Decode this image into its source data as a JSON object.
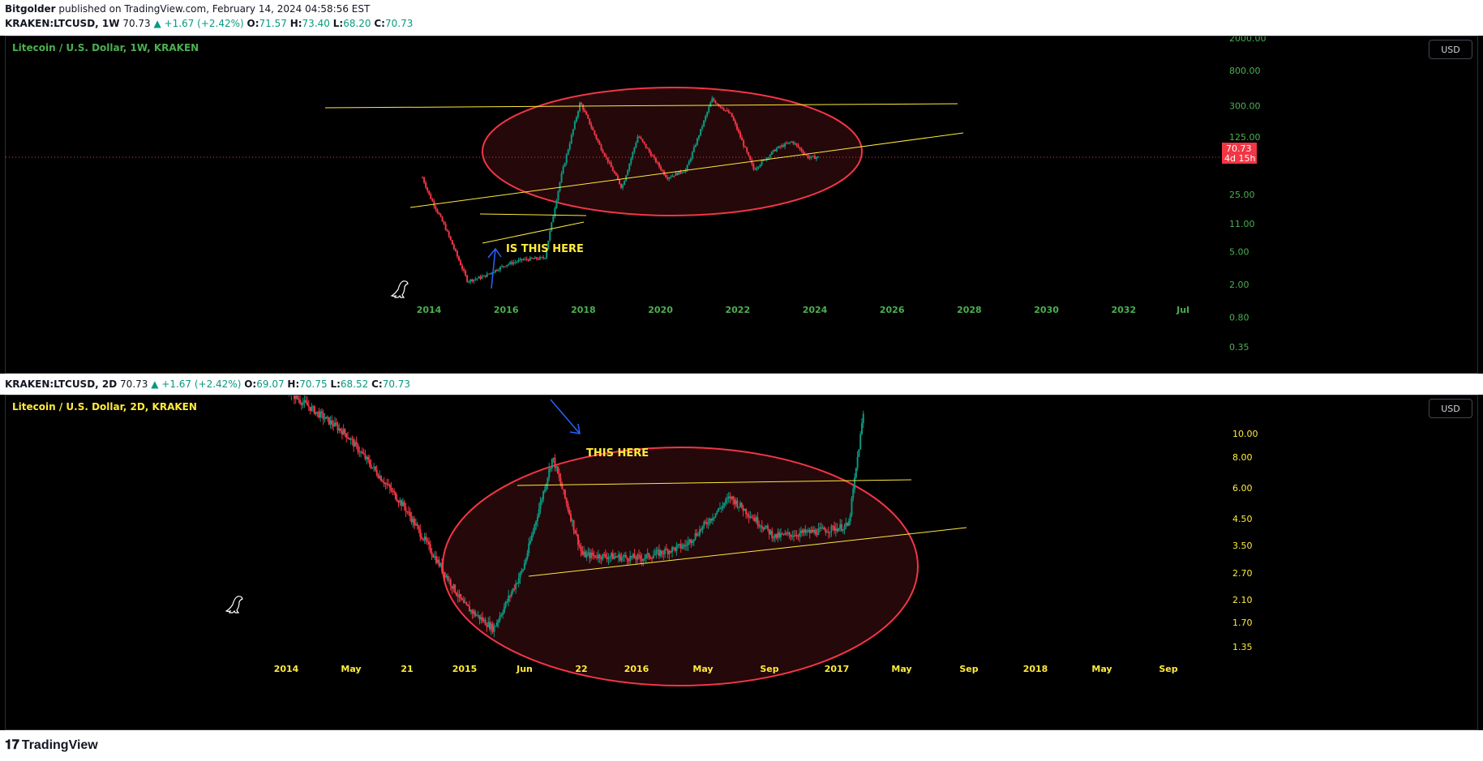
{
  "header": {
    "author": "Bitgolder",
    "published": "published on TradingView.com, February 14, 2024 04:58:56 EST"
  },
  "panel1": {
    "ohlc": {
      "symbol": "KRAKEN:LTCUSD, 1W",
      "last": "70.73",
      "change": "▲ +1.67 (+2.42%)",
      "o": "71.57",
      "h": "73.40",
      "l": "68.20",
      "c": "70.73"
    },
    "title": "Litecoin / U.S. Dollar, 1W, KRAKEN",
    "currency": "USD",
    "price_label": "70.73",
    "countdown": "4d 15h",
    "annotation": "IS THIS HERE"
  },
  "panel2": {
    "ohlc": {
      "symbol": "KRAKEN:LTCUSD, 2D",
      "last": "70.73",
      "change": "▲ +1.67 (+2.42%)",
      "o": "69.07",
      "h": "70.75",
      "l": "68.52",
      "c": "70.73"
    },
    "title": "Litecoin / U.S. Dollar, 2D, KRAKEN",
    "currency": "USD",
    "annotation": "THIS HERE"
  },
  "footer": {
    "brand": "TradingView",
    "logo_icon": "tradingview-logo-icon"
  },
  "colors": {
    "up": "#089981",
    "down": "#f23645",
    "trend": "#ffeb3b",
    "ellipse": "#f23645",
    "arrow": "#2962ff",
    "axis1": "#4caf50",
    "axis2": "#ffeb3b"
  },
  "chart_data": [
    {
      "type": "candlestick",
      "title": "Litecoin / U.S. Dollar, 1W, KRAKEN",
      "y_scale": "log",
      "yticks": [
        "2000.00",
        "800.00",
        "300.00",
        "125.00",
        "25.00",
        "11.00",
        "5.00",
        "2.00",
        "0.80",
        "0.35"
      ],
      "xticks": [
        "2014",
        "2016",
        "2018",
        "2020",
        "2022",
        "2024",
        "2026",
        "2028",
        "2030",
        "2032",
        "Jul"
      ],
      "last_price": 70.73,
      "series": [
        {
          "x": [
            "2013-11",
            "2014-01",
            "2014-06",
            "2015-01",
            "2015-06",
            "2016-01",
            "2016-06",
            "2017-01",
            "2017-06",
            "2017-12",
            "2018-06",
            "2019-01",
            "2019-06",
            "2020-03",
            "2020-09",
            "2021-05",
            "2021-11",
            "2022-06",
            "2023-01",
            "2023-06",
            "2023-11",
            "2024-02"
          ],
          "values": [
            40,
            25,
            10,
            2.2,
            2.5,
            3.5,
            4,
            4.2,
            40,
            330,
            100,
            30,
            130,
            40,
            50,
            360,
            230,
            50,
            90,
            110,
            70,
            70.73
          ]
        }
      ]
    },
    {
      "type": "candlestick",
      "title": "Litecoin / U.S. Dollar, 2D, KRAKEN",
      "y_scale": "log",
      "yticks": [
        "10.00",
        "8.00",
        "6.00",
        "4.50",
        "3.50",
        "2.70",
        "2.10",
        "1.70",
        "1.35"
      ],
      "xticks": [
        "2014",
        "May",
        "21",
        "2015",
        "Jun",
        "22",
        "2016",
        "May",
        "Sep",
        "2017",
        "May",
        "Sep",
        "2018",
        "May",
        "Sep"
      ],
      "series": [
        {
          "x": [
            "2013-11",
            "2014-01",
            "2014-05",
            "2014-09",
            "2015-01",
            "2015-03",
            "2015-05",
            "2015-07",
            "2015-09",
            "2016-01",
            "2016-04",
            "2016-07",
            "2016-10",
            "2017-01",
            "2017-03",
            "2017-04"
          ],
          "values": [
            30,
            15,
            10,
            5,
            2,
            1.6,
            2.8,
            8,
            3.2,
            3.1,
            3.5,
            5.5,
            3.8,
            4.0,
            4.2,
            12
          ]
        }
      ]
    }
  ]
}
